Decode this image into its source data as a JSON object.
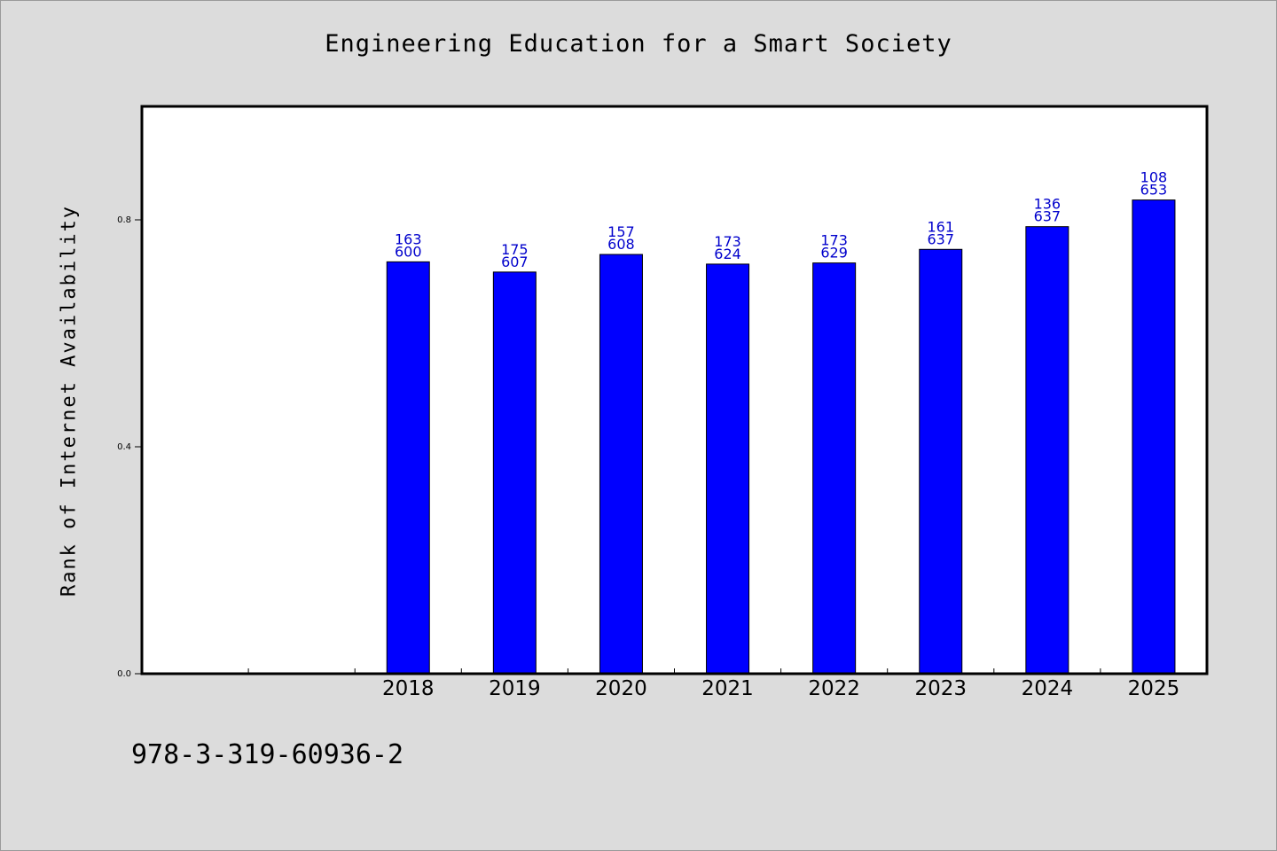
{
  "chart_data": {
    "type": "bar",
    "title": "Engineering Education for a Smart Society",
    "xlabel": "",
    "ylabel": "Rank of Internet Availability",
    "categories": [
      "",
      "",
      "2018",
      "2019",
      "2020",
      "2021",
      "2022",
      "2023",
      "2024",
      "2025"
    ],
    "values": [
      null,
      null,
      0.726,
      0.708,
      0.739,
      0.722,
      0.724,
      0.748,
      0.788,
      0.835
    ],
    "labels_top": [
      "",
      "",
      "163",
      "175",
      "157",
      "173",
      "173",
      "161",
      "136",
      "108"
    ],
    "labels_bottom": [
      "",
      "",
      "600",
      "607",
      "608",
      "624",
      "629",
      "637",
      "637",
      "653"
    ],
    "ylim": [
      0,
      1.0
    ],
    "yticks": [
      0.0,
      0.4,
      0.8
    ],
    "ytick_labels": [
      "0.0",
      "0.4",
      "0.8"
    ],
    "grid": false,
    "legend": "none"
  },
  "footer_text": "978-3-319-60936-2",
  "colors": {
    "background": "#dcdcdc",
    "plot_background": "#ffffff",
    "bar": "#0000ff",
    "bar_label": "#0000cc"
  }
}
